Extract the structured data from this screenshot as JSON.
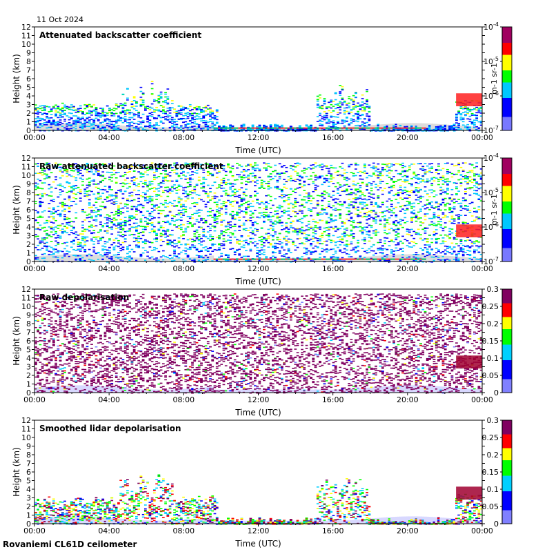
{
  "date_label": "11 Oct 2024",
  "footer": "Rovaniemi CL61D ceilometer",
  "colors": {
    "frame": "#000000",
    "bg": "#ffffff"
  },
  "chart_data": [
    {
      "type": "heatmap",
      "title": "Attenuated backscatter coefficient",
      "xlabel": "Time (UTC)",
      "ylabel": "Height (km)",
      "x_ticks": [
        "00:00",
        "04:00",
        "08:00",
        "12:00",
        "16:00",
        "20:00",
        "00:00"
      ],
      "xlim_hours": [
        0,
        24
      ],
      "y_ticks": [
        0,
        1,
        2,
        3,
        4,
        5,
        6,
        7,
        8,
        9,
        10,
        11,
        12
      ],
      "ylim": [
        0,
        12
      ],
      "colorbar": {
        "scale": "log",
        "range": [
          1e-07,
          0.0001
        ],
        "ticks": [
          "10-7",
          "10-6",
          "10-5",
          "10-4"
        ],
        "label": "m-1 sr-1"
      }
    },
    {
      "type": "heatmap",
      "title": "Raw attenuated backscatter coefficient",
      "xlabel": "Time (UTC)",
      "ylabel": "Height (km)",
      "x_ticks": [
        "00:00",
        "04:00",
        "08:00",
        "12:00",
        "16:00",
        "20:00",
        "00:00"
      ],
      "xlim_hours": [
        0,
        24
      ],
      "y_ticks": [
        0,
        1,
        2,
        3,
        4,
        5,
        6,
        7,
        8,
        9,
        10,
        11,
        12
      ],
      "ylim": [
        0,
        12
      ],
      "colorbar": {
        "scale": "log",
        "range": [
          1e-07,
          0.0001
        ],
        "ticks": [
          "10-7",
          "10-6",
          "10-5",
          "10-4"
        ],
        "label": "m-1 sr-1"
      }
    },
    {
      "type": "heatmap",
      "title": "Raw depolarisation",
      "xlabel": "Time (UTC)",
      "ylabel": "Height (km)",
      "x_ticks": [
        "00:00",
        "04:00",
        "08:00",
        "12:00",
        "16:00",
        "20:00",
        "00:00"
      ],
      "xlim_hours": [
        0,
        24
      ],
      "y_ticks": [
        0,
        1,
        2,
        3,
        4,
        5,
        6,
        7,
        8,
        9,
        10,
        11,
        12
      ],
      "ylim": [
        0,
        12
      ],
      "colorbar": {
        "scale": "linear",
        "range": [
          0,
          0.3
        ],
        "ticks": [
          "0",
          "0.05",
          "0.1",
          "0.15",
          "0.2",
          "0.25",
          "0.3"
        ],
        "label": ""
      }
    },
    {
      "type": "heatmap",
      "title": "Smoothed lidar depolarisation",
      "xlabel": "Time (UTC)",
      "ylabel": "Height (km)",
      "x_ticks": [
        "00:00",
        "04:00",
        "08:00",
        "12:00",
        "16:00",
        "20:00",
        "00:00"
      ],
      "xlim_hours": [
        0,
        24
      ],
      "y_ticks": [
        0,
        1,
        2,
        3,
        4,
        5,
        6,
        7,
        8,
        9,
        10,
        11,
        12
      ],
      "ylim": [
        0,
        12
      ],
      "colorbar": {
        "scale": "linear",
        "range": [
          0,
          0.3
        ],
        "ticks": [
          "0",
          "0.05",
          "0.1",
          "0.15",
          "0.2",
          "0.25",
          "0.3"
        ],
        "label": ""
      }
    }
  ]
}
